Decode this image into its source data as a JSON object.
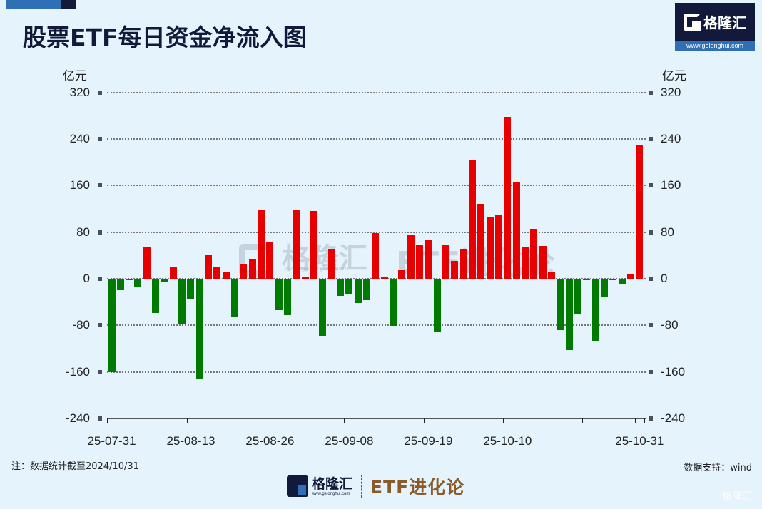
{
  "header": {
    "title": "股票ETF每日资金净流入图",
    "logo_name": "格隆汇",
    "logo_url": "www.gelonghui.com"
  },
  "axis": {
    "unit_left": "亿元",
    "unit_right": "亿元"
  },
  "footer": {
    "note": "注：数据统计截至2024/10/31",
    "source": "数据支持：wind",
    "logo_name": "格隆汇",
    "logo_url": "www.gelonghui.com",
    "brand": "ETF进化论",
    "corner_watermark": "格隆汇"
  },
  "watermark": {
    "name": "格隆汇",
    "url": "www.gelonghui.com",
    "brand": "ETF进化论"
  },
  "colors": {
    "positive": "#e60000",
    "negative": "#007a00",
    "background": "#e4f3fc",
    "title": "#13193a",
    "brand": "#8b5a2b"
  },
  "chart_data": {
    "type": "bar",
    "title": "股票ETF每日资金净流入图",
    "xlabel": "",
    "ylabel": "亿元",
    "ylim": [
      -240,
      320
    ],
    "yticks": [
      320,
      240,
      160,
      80,
      0,
      -80,
      -160,
      -240
    ],
    "grid": true,
    "legend": "none",
    "x_tick_labels": [
      "25-07-31",
      "25-08-13",
      "25-08-26",
      "25-09-08",
      "25-09-19",
      "25-10-10",
      "25-10-31"
    ],
    "x_tick_label_bar_index": [
      0,
      9,
      18,
      27,
      36,
      45,
      60
    ],
    "series": [
      {
        "name": "净流入",
        "values": [
          -160,
          -20,
          -1,
          -15,
          54,
          -59,
          -6,
          19,
          -79,
          -34,
          -171,
          40,
          19,
          11,
          -65,
          24,
          34,
          119,
          63,
          -54,
          -62,
          117,
          2,
          116,
          -99,
          51,
          -29,
          -26,
          -42,
          -37,
          79,
          2,
          -81,
          15,
          76,
          57,
          66,
          -92,
          59,
          31,
          51,
          204,
          129,
          106,
          110,
          278,
          165,
          55,
          86,
          56,
          11,
          -88,
          -123,
          -61,
          -3,
          -106,
          -32,
          -3,
          -9,
          8,
          230
        ]
      }
    ]
  }
}
